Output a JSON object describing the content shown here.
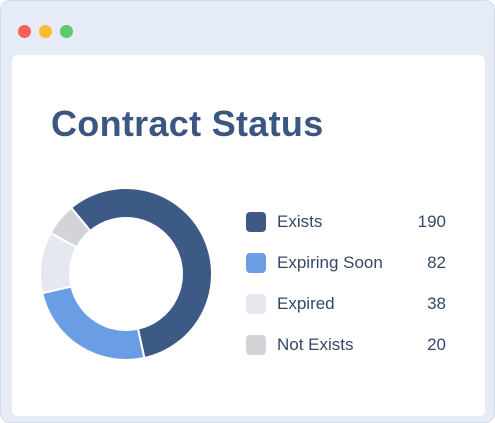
{
  "window": {
    "controls": [
      {
        "name": "close",
        "color": "#ff5f57"
      },
      {
        "name": "minimize",
        "color": "#fdbc2e"
      },
      {
        "name": "zoom",
        "color": "#5ec86f"
      }
    ]
  },
  "chart_data": {
    "type": "pie",
    "title": "Contract Status",
    "categories": [
      "Exists",
      "Expiring Soon",
      "Expired",
      "Not Exists"
    ],
    "values": [
      190,
      82,
      38,
      20
    ],
    "colors": [
      "#3d5a86",
      "#6b9de4",
      "#e5e9ef",
      "#d2d4d8"
    ],
    "donut": true,
    "legend_position": "right"
  }
}
